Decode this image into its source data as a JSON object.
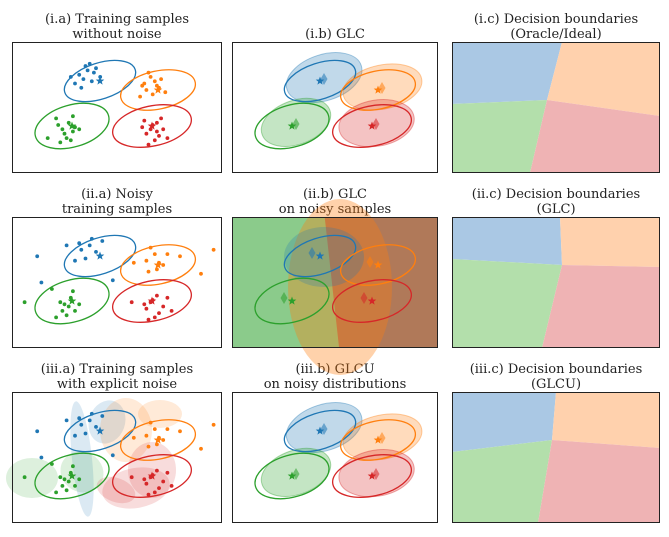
{
  "colors": {
    "blue": "#1f77b4",
    "orange": "#ff7f0e",
    "green": "#2ca02c",
    "red": "#d62728"
  },
  "panels": [
    {
      "id": "ia",
      "kind": "scatter",
      "title": [
        "(i.a) Training samples",
        "without noise"
      ]
    },
    {
      "id": "ib",
      "kind": "glc",
      "title": [
        "(i.b) GLC"
      ]
    },
    {
      "id": "ic",
      "kind": "boundary",
      "title": [
        "(i.c) Decision boundaries",
        "(Oracle/Ideal)"
      ]
    },
    {
      "id": "iia",
      "kind": "scatter",
      "title": [
        "(ii.a) Noisy",
        "training samples"
      ]
    },
    {
      "id": "iib",
      "kind": "glc-noisy",
      "title": [
        "(ii.b) GLC",
        "on noisy samples"
      ]
    },
    {
      "id": "iic",
      "kind": "boundary",
      "title": [
        "(ii.c) Decision boundaries",
        "(GLC)"
      ]
    },
    {
      "id": "iiia",
      "kind": "scatter",
      "title": [
        "(iii.a) Training samples",
        "with explicit noise"
      ]
    },
    {
      "id": "iiib",
      "kind": "glc",
      "title": [
        "(iii.b) GLCU",
        "on noisy distributions"
      ]
    },
    {
      "id": "iiic",
      "kind": "boundary",
      "title": [
        "(iii.c) Decision boundaries",
        "(GLCU)"
      ]
    }
  ],
  "chart_data": [
    {
      "type": "scatter",
      "title": "(i.a) Training samples without noise",
      "xlim": [
        0,
        10
      ],
      "ylim": [
        0,
        6
      ],
      "series": [
        {
          "color": "blue",
          "points": [
            [
              3.2,
              4.5
            ],
            [
              3.5,
              4.9
            ],
            [
              3.8,
              4.2
            ],
            [
              3.6,
              4.7
            ],
            [
              3.0,
              4.1
            ],
            [
              3.9,
              4.6
            ],
            [
              4.2,
              4.4
            ],
            [
              3.4,
              4.3
            ],
            [
              3.7,
              5.0
            ],
            [
              4.0,
              4.8
            ],
            [
              3.3,
              3.9
            ],
            [
              2.8,
              4.4
            ]
          ]
        },
        {
          "color": "orange",
          "points": [
            [
              6.3,
              4.1
            ],
            [
              6.6,
              4.4
            ],
            [
              6.9,
              4.0
            ],
            [
              6.4,
              3.8
            ],
            [
              7.1,
              4.3
            ],
            [
              6.7,
              3.6
            ],
            [
              6.1,
              3.5
            ],
            [
              7.0,
              3.9
            ],
            [
              6.5,
              4.6
            ],
            [
              6.8,
              4.2
            ],
            [
              7.3,
              3.7
            ],
            [
              6.2,
              4.0
            ]
          ]
        },
        {
          "color": "green",
          "points": [
            [
              2.4,
              2.0
            ],
            [
              2.7,
              2.3
            ],
            [
              2.9,
              1.9
            ],
            [
              2.6,
              1.6
            ],
            [
              2.2,
              2.2
            ],
            [
              3.0,
              2.1
            ],
            [
              2.5,
              1.8
            ],
            [
              2.8,
              1.5
            ],
            [
              3.2,
              2.0
            ],
            [
              2.3,
              1.4
            ],
            [
              2.1,
              2.5
            ],
            [
              2.9,
              2.6
            ],
            [
              1.7,
              1.6
            ]
          ]
        },
        {
          "color": "red",
          "points": [
            [
              6.6,
              2.0
            ],
            [
              6.9,
              2.3
            ],
            [
              6.4,
              1.8
            ],
            [
              7.0,
              1.7
            ],
            [
              6.7,
              2.2
            ],
            [
              6.2,
              2.1
            ],
            [
              7.2,
              2.0
            ],
            [
              6.8,
              1.5
            ],
            [
              6.5,
              1.3
            ],
            [
              7.1,
              2.5
            ],
            [
              6.3,
              2.4
            ],
            [
              6.9,
              1.9
            ],
            [
              7.4,
              1.6
            ]
          ]
        }
      ]
    },
    {
      "type": "scatter",
      "title": "(ii.a) Noisy training samples",
      "xlim": [
        0,
        10
      ],
      "ylim": [
        0,
        6
      ],
      "series": [
        {
          "color": "blue",
          "points": [
            [
              3.3,
              4.5
            ],
            [
              3.7,
              4.7
            ],
            [
              3.5,
              4.1
            ],
            [
              4.0,
              4.4
            ],
            [
              3.0,
              4.0
            ],
            [
              3.8,
              5.0
            ],
            [
              4.3,
              4.9
            ],
            [
              3.2,
              4.8
            ],
            [
              1.2,
              4.2
            ],
            [
              1.4,
              3.0
            ],
            [
              4.8,
              3.1
            ],
            [
              2.6,
              4.7
            ]
          ]
        },
        {
          "color": "orange",
          "points": [
            [
              6.4,
              4.0
            ],
            [
              6.8,
              4.3
            ],
            [
              7.0,
              3.9
            ],
            [
              6.5,
              3.5
            ],
            [
              7.2,
              3.8
            ],
            [
              6.6,
              4.6
            ],
            [
              6.9,
              3.6
            ],
            [
              5.8,
              3.9
            ],
            [
              8.0,
              4.2
            ],
            [
              9.6,
              4.5
            ],
            [
              9.0,
              3.4
            ],
            [
              7.4,
              4.3
            ]
          ]
        },
        {
          "color": "green",
          "points": [
            [
              2.5,
              2.0
            ],
            [
              2.8,
              2.3
            ],
            [
              3.0,
              1.7
            ],
            [
              2.6,
              1.5
            ],
            [
              2.3,
              2.1
            ],
            [
              2.9,
              2.6
            ],
            [
              2.4,
              1.7
            ],
            [
              3.2,
              2.0
            ],
            [
              2.7,
              1.9
            ],
            [
              2.1,
              1.4
            ],
            [
              0.6,
              2.1
            ],
            [
              1.9,
              2.7
            ]
          ]
        },
        {
          "color": "red",
          "points": [
            [
              6.6,
              2.1
            ],
            [
              6.9,
              2.4
            ],
            [
              6.4,
              1.8
            ],
            [
              7.0,
              1.6
            ],
            [
              6.7,
              2.2
            ],
            [
              6.3,
              2.0
            ],
            [
              7.2,
              1.9
            ],
            [
              6.8,
              1.4
            ],
            [
              6.5,
              1.3
            ],
            [
              7.4,
              2.3
            ],
            [
              5.7,
              2.1
            ],
            [
              7.6,
              1.7
            ]
          ]
        }
      ]
    },
    {
      "type": "scatter",
      "title": "(iii.a) Training samples with explicit noise",
      "xlim": [
        0,
        10
      ],
      "ylim": [
        0,
        6
      ],
      "series": [
        {
          "color": "blue",
          "points": [
            [
              3.3,
              4.5
            ],
            [
              3.7,
              4.7
            ],
            [
              3.5,
              4.1
            ],
            [
              4.0,
              4.4
            ],
            [
              3.0,
              4.0
            ],
            [
              3.8,
              5.0
            ],
            [
              4.3,
              4.9
            ],
            [
              3.2,
              4.8
            ],
            [
              1.2,
              4.2
            ],
            [
              1.4,
              3.0
            ],
            [
              4.8,
              3.1
            ],
            [
              2.6,
              4.7
            ]
          ]
        },
        {
          "color": "orange",
          "points": [
            [
              6.4,
              4.0
            ],
            [
              6.8,
              4.3
            ],
            [
              7.0,
              3.9
            ],
            [
              6.5,
              3.5
            ],
            [
              7.2,
              3.8
            ],
            [
              6.6,
              4.6
            ],
            [
              6.9,
              3.6
            ],
            [
              5.8,
              3.9
            ],
            [
              8.0,
              4.2
            ],
            [
              9.6,
              4.5
            ],
            [
              9.0,
              3.4
            ],
            [
              7.4,
              4.3
            ]
          ]
        },
        {
          "color": "green",
          "points": [
            [
              2.5,
              2.0
            ],
            [
              2.8,
              2.3
            ],
            [
              3.0,
              1.7
            ],
            [
              2.6,
              1.5
            ],
            [
              2.3,
              2.1
            ],
            [
              2.9,
              2.6
            ],
            [
              2.4,
              1.7
            ],
            [
              3.2,
              2.0
            ],
            [
              2.7,
              1.9
            ],
            [
              2.1,
              1.4
            ],
            [
              0.6,
              2.1
            ],
            [
              1.9,
              2.7
            ]
          ]
        },
        {
          "color": "red",
          "points": [
            [
              6.6,
              2.1
            ],
            [
              6.9,
              2.4
            ],
            [
              6.4,
              1.8
            ],
            [
              7.0,
              1.6
            ],
            [
              6.7,
              2.2
            ],
            [
              6.3,
              2.0
            ],
            [
              7.2,
              1.9
            ],
            [
              6.8,
              1.4
            ],
            [
              6.5,
              1.3
            ],
            [
              7.4,
              2.3
            ],
            [
              5.7,
              2.1
            ],
            [
              7.6,
              1.7
            ]
          ]
        }
      ]
    }
  ]
}
